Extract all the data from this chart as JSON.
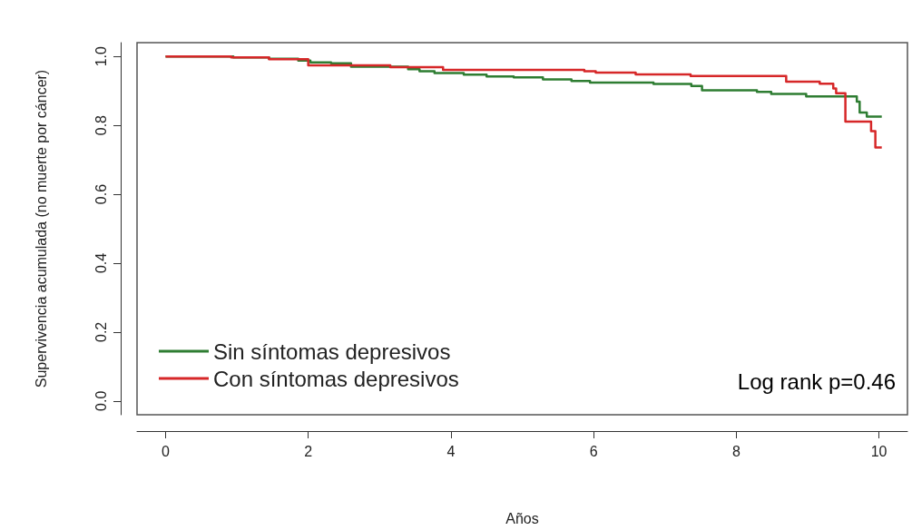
{
  "chart_data": {
    "type": "step",
    "xlabel": "Años",
    "ylabel": "Supervivencia acumulada (no muerte por cáncer)",
    "xlim": [
      -0.4,
      10.4
    ],
    "xticks": [
      0,
      2,
      4,
      6,
      8,
      10
    ],
    "ylim": [
      -0.04,
      1.04
    ],
    "yticks": [
      {
        "value": 0,
        "label": "0.0"
      },
      0.2,
      0.4,
      0.6,
      0.8,
      {
        "value": 1,
        "label": "1.0"
      }
    ],
    "grid": false,
    "legend": "bottom left",
    "marker": "none",
    "line_style": "solid",
    "annotations": [
      "Log rank p=0.46"
    ],
    "series": [
      {
        "name": "Sin síntomas depresivos",
        "color": "#2e7d32",
        "x": [
          0,
          0.95,
          1.45,
          1.86,
          2.03,
          2.32,
          2.6,
          3.4,
          3.56,
          3.77,
          4.18,
          4.5,
          4.88,
          5.29,
          5.69,
          5.95,
          6.84,
          7.37,
          7.52,
          8.29,
          8.49,
          8.98,
          9.69,
          9.73,
          9.83,
          10.04
        ],
        "values": [
          1.0,
          0.997,
          0.993,
          0.988,
          0.983,
          0.98,
          0.97,
          0.963,
          0.957,
          0.952,
          0.947,
          0.942,
          0.939,
          0.933,
          0.929,
          0.924,
          0.92,
          0.914,
          0.902,
          0.897,
          0.891,
          0.884,
          0.869,
          0.837,
          0.825,
          0.825
        ]
      },
      {
        "name": "Con síntomas depresivos",
        "color": "#d62728",
        "x": [
          0,
          0.92,
          1.45,
          2.0,
          3.15,
          3.89,
          5.87,
          6.03,
          6.59,
          7.36,
          8.7,
          9.17,
          9.36,
          9.4,
          9.53,
          9.89,
          9.95,
          10.04
        ],
        "values": [
          1.0,
          0.997,
          0.992,
          0.974,
          0.969,
          0.961,
          0.957,
          0.953,
          0.948,
          0.943,
          0.927,
          0.921,
          0.907,
          0.893,
          0.811,
          0.783,
          0.736,
          0.736
        ]
      }
    ]
  }
}
